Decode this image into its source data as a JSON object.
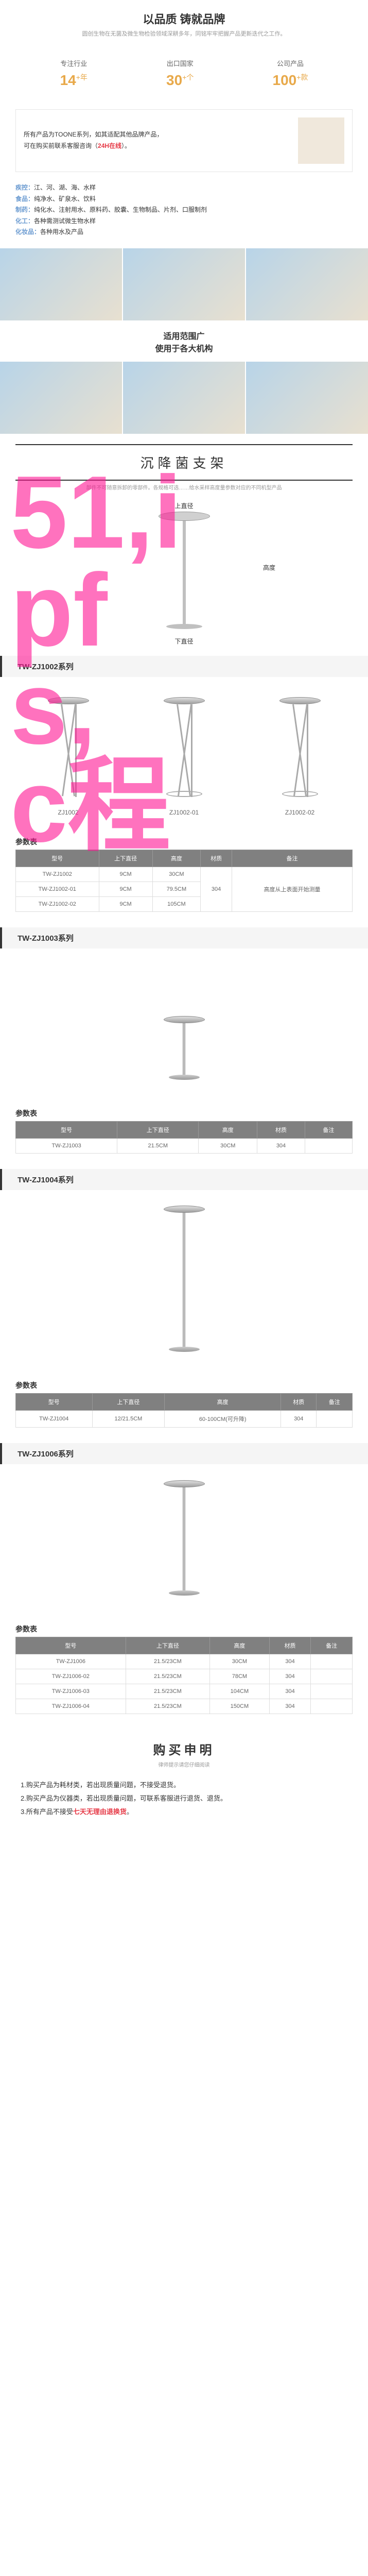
{
  "header": {
    "title": "以品质 铸就品牌",
    "subtitle": "圆创生物在无菌及微生物检验领域深耕多年，同铭牢牢把握产品更新迭代之工作。"
  },
  "stats": [
    {
      "label": "专注行业",
      "value": "14",
      "unit": "+年"
    },
    {
      "label": "出口国家",
      "value": "30",
      "unit": "+个"
    },
    {
      "label": "公司产品",
      "value": "100",
      "unit": "+款"
    }
  ],
  "notice": {
    "line1": "所有产品为TOONE系列，如其适配其他品牌产品，",
    "line2_prefix": "可在购买前联系客服咨询（",
    "line2_highlight": "24H在线",
    "line2_suffix": "）。"
  },
  "categories": [
    {
      "label": "疾控：",
      "text": "江、河、湖、海、水样"
    },
    {
      "label": "食品：",
      "text": "纯净水、矿泉水、饮料"
    },
    {
      "label": "制药：",
      "text": "纯化水、注射用水、原料药、胶囊、生物制品、片剂、口服制剂"
    },
    {
      "label": "化工：",
      "text": "各种需测试微生物水样"
    },
    {
      "label": "化妆品：",
      "text": "各种用水及产品"
    }
  ],
  "usage_banner": {
    "line1": "适用范围广",
    "line2": "使用于各大机构"
  },
  "section_title": "沉降菌支架",
  "section_sub": "部件不可随意拆卸的零部件。各规格可选……给水采样高度量参数对应的不同机型产品",
  "diagram": {
    "top_label": "上直径",
    "height_label": "高度",
    "bottom_label": "下直径"
  },
  "series": [
    {
      "name": "TW-ZJ1002系列",
      "products": [
        {
          "name": "ZJ1002",
          "style": "tripod"
        },
        {
          "name": "ZJ1002-01",
          "style": "tripod-ring"
        },
        {
          "name": "ZJ1002-02",
          "style": "tripod-ring"
        }
      ],
      "param_title": "参数表",
      "columns": [
        "型号",
        "上下直径",
        "高度",
        "材质",
        "备注"
      ],
      "rows": [
        [
          "TW-ZJ1002",
          "9CM",
          "30CM",
          "304",
          ""
        ],
        [
          "TW-ZJ1002-01",
          "9CM",
          "79.5CM",
          "304",
          "高度从上表面开始测量"
        ],
        [
          "TW-ZJ1002-02",
          "9CM",
          "105CM",
          "304",
          ""
        ]
      ],
      "note_merged": true
    },
    {
      "name": "TW-ZJ1003系列",
      "products": [
        {
          "name": "",
          "style": "single-short"
        }
      ],
      "param_title": "参数表",
      "columns": [
        "型号",
        "上下直径",
        "高度",
        "材质",
        "备注"
      ],
      "rows": [
        [
          "TW-ZJ1003",
          "21.5CM",
          "30CM",
          "304",
          ""
        ]
      ]
    },
    {
      "name": "TW-ZJ1004系列",
      "products": [
        {
          "name": "",
          "style": "single-tall"
        }
      ],
      "param_title": "参数表",
      "columns": [
        "型号",
        "上下直径",
        "高度",
        "材质",
        "备注"
      ],
      "rows": [
        [
          "TW-ZJ1004",
          "12/21.5CM",
          "60-100CM(可升降)",
          "304",
          ""
        ]
      ]
    },
    {
      "name": "TW-ZJ1006系列",
      "products": [
        {
          "name": "",
          "style": "single-medium"
        }
      ],
      "param_title": "参数表",
      "columns": [
        "型号",
        "上下直径",
        "高度",
        "材质",
        "备注"
      ],
      "rows": [
        [
          "TW-ZJ1006",
          "21.5/23CM",
          "30CM",
          "304",
          ""
        ],
        [
          "TW-ZJ1006-02",
          "21.5/23CM",
          "78CM",
          "304",
          ""
        ],
        [
          "TW-ZJ1006-03",
          "21.5/23CM",
          "104CM",
          "304",
          ""
        ],
        [
          "TW-ZJ1006-04",
          "21.5/23CM",
          "150CM",
          "304",
          ""
        ]
      ]
    }
  ],
  "purchase": {
    "title": "购买申明",
    "subtitle": "律师提示请您仔细阅读",
    "items": [
      {
        "text": "1.购买产品为耗材类，若出现质量问题，不接受退货。"
      },
      {
        "text": "2.购买产品为仪器类，若出现质量问题，可联系客服进行退货、退货。"
      },
      {
        "prefix": "3.所有产品不接受",
        "highlight": "七天无理由退换货",
        "suffix": "。"
      }
    ]
  },
  "watermark": "51,i\npf\ns,\nc程"
}
